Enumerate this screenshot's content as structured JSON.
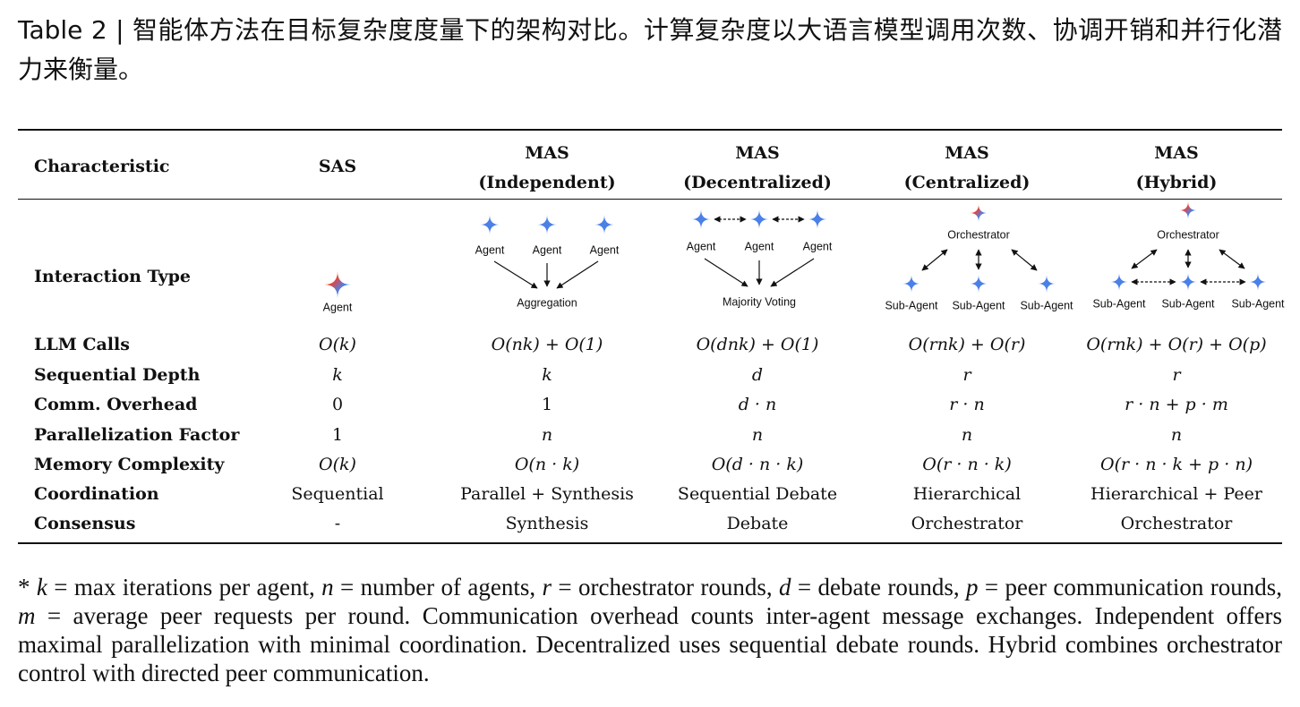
{
  "caption": "Table 2 | 智能体方法在目标复杂度度量下的架构对比。计算复杂度以大语言模型调用次数、协调开销和并行化潜力来衡量。",
  "table": {
    "header": [
      [
        "Characteristic"
      ],
      [
        "SAS"
      ],
      [
        "MAS",
        "(Independent)"
      ],
      [
        "MAS",
        "(Decentralized)"
      ],
      [
        "MAS",
        "(Centralized)"
      ],
      [
        "MAS",
        "(Hybrid)"
      ]
    ],
    "interaction_label": "Interaction Type",
    "diagrams": [
      {
        "agents": [
          "Agent"
        ]
      },
      {
        "agents": [
          "Agent",
          "Agent",
          "Agent"
        ],
        "output": "Aggregation"
      },
      {
        "agents": [
          "Agent",
          "Agent",
          "Agent"
        ],
        "output": "Majority Voting"
      },
      {
        "orchestrator": "Orchestrator",
        "agents": [
          "Sub-Agent",
          "Sub-Agent",
          "Sub-Agent"
        ]
      },
      {
        "orchestrator": "Orchestrator",
        "agents": [
          "Sub-Agent",
          "Sub-Agent",
          "Sub-Agent"
        ]
      }
    ],
    "rows": [
      [
        "LLM Calls",
        "O(k)",
        "O(nk) + O(1)",
        "O(dnk) + O(1)",
        "O(rnk) + O(r)",
        "O(rnk) + O(r) + O(p)"
      ],
      [
        "Sequential Depth",
        "k",
        "k",
        "d",
        "r",
        "r"
      ],
      [
        "Comm. Overhead",
        "0",
        "1",
        "d · n",
        "r · n",
        "r · n + p · m"
      ],
      [
        "Parallelization Factor",
        "1",
        "n",
        "n",
        "n",
        "n"
      ],
      [
        "Memory Complexity",
        "O(k)",
        "O(n · k)",
        "O(d · n · k)",
        "O(r · n · k)",
        "O(r · n · k + p · n)"
      ],
      [
        "Coordination",
        "Sequential",
        "Parallel + Synthesis",
        "Sequential Debate",
        "Hierarchical",
        "Hierarchical + Peer"
      ],
      [
        "Consensus",
        "-",
        "Synthesis",
        "Debate",
        "Orchestrator",
        "Orchestrator"
      ]
    ]
  },
  "footnote": [
    "* ",
    "k",
    " = max iterations per agent, ",
    "n",
    " = number of agents, ",
    "r",
    " = orchestrator rounds, ",
    "d",
    " = debate rounds, ",
    "p",
    " = peer communication rounds, ",
    "m",
    " = average peer requests per round. Communication overhead counts inter-agent message exchanges. Independent offers maximal parallelization with minimal coordination. Decentralized uses sequential debate rounds. Hybrid combines orchestrator control with directed peer communication."
  ]
}
